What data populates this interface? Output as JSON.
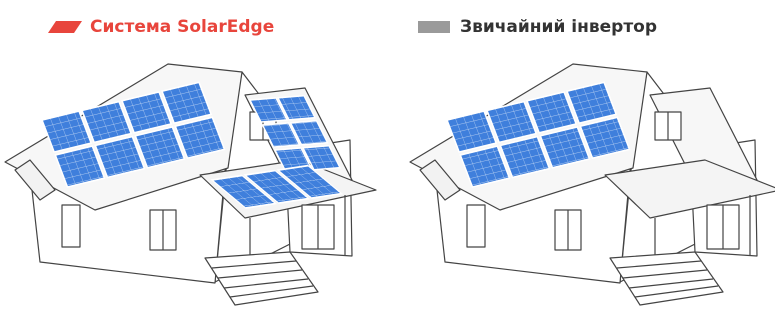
{
  "legend": [
    {
      "label": "Система SolarEdge"
    },
    {
      "label": "Звичайний інвертор"
    }
  ]
}
